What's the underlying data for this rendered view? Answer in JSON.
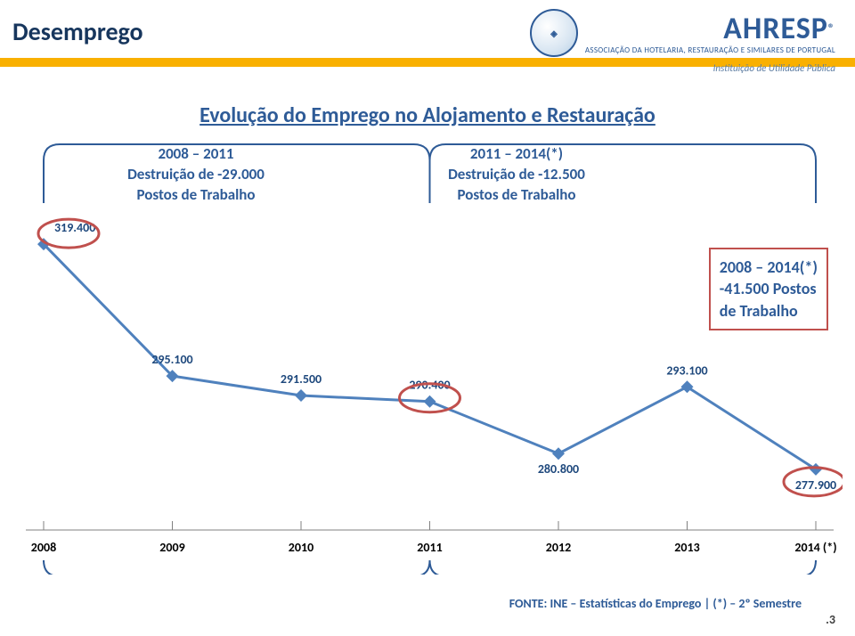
{
  "header": {
    "title": "Desemprego",
    "logo_name": "AHRESP",
    "logo_sub": "ASSOCIAÇÃO DA HOTELARIA, RESTAURAÇÃO E SIMILARES DE PORTUGAL",
    "logo_sub2": "Instituição de Utilidade Pública"
  },
  "subtitle": "Evolução do Emprego no Alojamento e Restauração",
  "chart": {
    "type": "line",
    "categories": [
      "2008",
      "2009",
      "2010",
      "2011",
      "2012",
      "2013",
      "2014 (*)"
    ],
    "values": [
      319400,
      295100,
      291500,
      290400,
      280800,
      293100,
      277900
    ],
    "ylim": [
      270000,
      325000
    ],
    "point_labels": [
      "319.400",
      "295.100",
      "291.500",
      "290.400",
      "280.800",
      "293.100",
      "277.900"
    ],
    "line_color": "#4F81BD",
    "line_width": 3,
    "marker_color": "#4F81BD",
    "marker_size": 7,
    "label_color": "#1F497D",
    "label_fontsize": 14,
    "label_fontweight": "bold",
    "axis_color": "#808080",
    "axis_label_color": "#000000",
    "axis_label_fontsize": 14,
    "axis_label_fontweight": "bold",
    "background_color": "#ffffff",
    "highlight_rings": [
      0,
      3,
      6
    ],
    "highlight_ring_color": "#C0504D",
    "highlight_ring_stroke": 3,
    "brackets": [
      {
        "from_index": 0,
        "to_index": 3,
        "color": "#2E5B97",
        "stroke": 2
      },
      {
        "from_index": 3,
        "to_index": 6,
        "color": "#2E5B97",
        "stroke": 2
      }
    ]
  },
  "annotations": {
    "left": {
      "line1": "2008 – 2011",
      "line2": "Destruição de -29.000",
      "line3": "Postos de Trabalho"
    },
    "right": {
      "line1": "2011 – 2014(*)",
      "line2": "Destruição de -12.500",
      "line3": "Postos de Trabalho"
    },
    "result": {
      "line1": "2008 – 2014(*)",
      "line2": "-41.500 Postos",
      "line3": "de Trabalho"
    }
  },
  "source": "FONTE: INE – Estatísticas do Emprego  |  (*) – 2º Semestre",
  "page_number": ".3"
}
